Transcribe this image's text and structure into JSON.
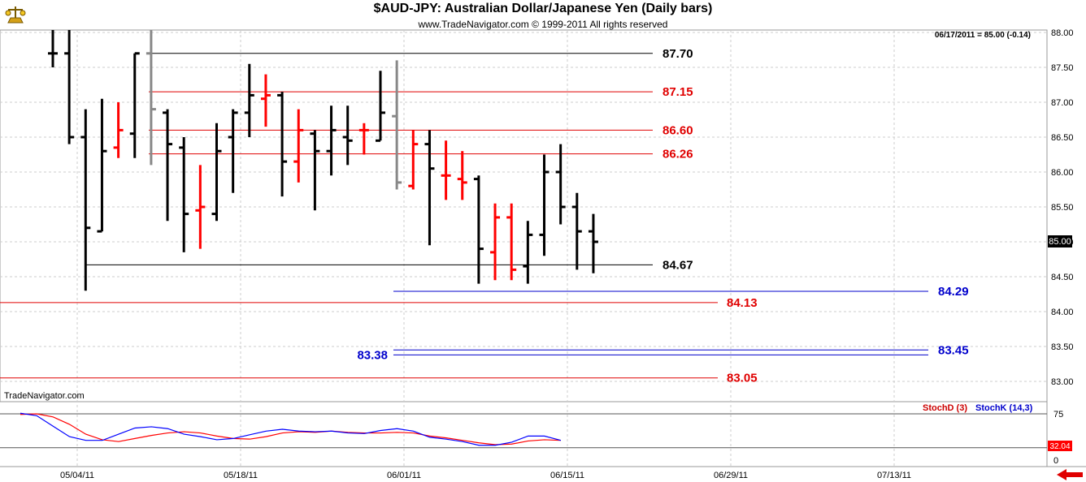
{
  "header": {
    "title": "$AUD-JPY:  Australian Dollar/Japanese Yen  (Daily bars)",
    "copyright": "www.TradeNavigator.com © 1999-2011 All rights reserved"
  },
  "status_readout": "06/17/2011 = 85.00 (-0.14)",
  "watermark": "TradeNavigator.com",
  "current_price_label": "85.00",
  "colors": {
    "up_bar": "#000000",
    "down_bar": "#ff0000",
    "first_day_bar": "#888888",
    "black_level": "#000000",
    "red_level": "#e00000",
    "blue_level": "#0000cc",
    "stoch_d": "#ff0000",
    "stoch_k": "#0000ff"
  },
  "chart_data": {
    "type": "bar",
    "subtype": "ohlc",
    "title": "$AUD-JPY:  Australian Dollar/Japanese Yen  (Daily bars)",
    "ylim": [
      82.7,
      88.1
    ],
    "y_ticks": [
      "88.00",
      "87.50",
      "87.00",
      "86.50",
      "86.00",
      "85.50",
      "85.00",
      "84.50",
      "84.00",
      "83.50",
      "83.00"
    ],
    "x_ticks": [
      "05/04/11",
      "05/18/11",
      "06/01/11",
      "06/15/11",
      "06/29/11",
      "07/13/11"
    ],
    "grid": true,
    "bars": [
      {
        "o": 87.7,
        "h": 88.2,
        "l": 87.5,
        "c": 87.7,
        "color": "black"
      },
      {
        "o": 87.7,
        "h": 88.15,
        "l": 86.4,
        "c": 86.5,
        "color": "black"
      },
      {
        "o": 86.5,
        "h": 86.9,
        "l": 84.3,
        "c": 85.2,
        "color": "black"
      },
      {
        "o": 85.15,
        "h": 87.05,
        "l": 85.15,
        "c": 86.3,
        "color": "black"
      },
      {
        "o": 86.35,
        "h": 87.0,
        "l": 86.2,
        "c": 86.6,
        "color": "red"
      },
      {
        "o": 86.55,
        "h": 87.7,
        "l": 86.2,
        "c": 87.7,
        "color": "black"
      },
      {
        "o": 87.7,
        "h": 88.2,
        "l": 86.1,
        "c": 86.9,
        "color": "gray"
      },
      {
        "o": 86.85,
        "h": 86.9,
        "l": 85.3,
        "c": 86.4,
        "color": "black"
      },
      {
        "o": 86.35,
        "h": 86.5,
        "l": 84.85,
        "c": 85.4,
        "color": "black"
      },
      {
        "o": 85.45,
        "h": 86.1,
        "l": 84.9,
        "c": 85.5,
        "color": "red"
      },
      {
        "o": 85.4,
        "h": 86.7,
        "l": 85.3,
        "c": 86.3,
        "color": "black"
      },
      {
        "o": 86.5,
        "h": 86.9,
        "l": 85.7,
        "c": 86.85,
        "color": "black"
      },
      {
        "o": 86.85,
        "h": 87.55,
        "l": 86.5,
        "c": 87.1,
        "color": "black"
      },
      {
        "o": 87.05,
        "h": 87.4,
        "l": 86.65,
        "c": 87.1,
        "color": "red"
      },
      {
        "o": 87.1,
        "h": 87.15,
        "l": 85.65,
        "c": 86.15,
        "color": "black"
      },
      {
        "o": 86.15,
        "h": 86.9,
        "l": 85.85,
        "c": 86.6,
        "color": "red"
      },
      {
        "o": 86.55,
        "h": 86.6,
        "l": 85.45,
        "c": 86.3,
        "color": "black"
      },
      {
        "o": 86.3,
        "h": 86.95,
        "l": 85.95,
        "c": 86.6,
        "color": "black"
      },
      {
        "o": 86.5,
        "h": 86.95,
        "l": 86.1,
        "c": 86.45,
        "color": "black"
      },
      {
        "o": 86.6,
        "h": 86.7,
        "l": 86.25,
        "c": 86.6,
        "color": "red"
      },
      {
        "o": 86.45,
        "h": 87.45,
        "l": 86.45,
        "c": 86.85,
        "color": "black"
      },
      {
        "o": 86.8,
        "h": 87.6,
        "l": 85.75,
        "c": 85.85,
        "color": "gray"
      },
      {
        "o": 85.8,
        "h": 86.6,
        "l": 85.75,
        "c": 86.4,
        "color": "red"
      },
      {
        "o": 86.4,
        "h": 86.6,
        "l": 84.95,
        "c": 86.05,
        "color": "black"
      },
      {
        "o": 85.95,
        "h": 86.45,
        "l": 85.6,
        "c": 85.95,
        "color": "red"
      },
      {
        "o": 85.9,
        "h": 86.3,
        "l": 85.6,
        "c": 85.85,
        "color": "red"
      },
      {
        "o": 85.9,
        "h": 85.95,
        "l": 84.4,
        "c": 84.9,
        "color": "black"
      },
      {
        "o": 84.85,
        "h": 85.55,
        "l": 84.45,
        "c": 85.35,
        "color": "red"
      },
      {
        "o": 85.35,
        "h": 85.55,
        "l": 84.45,
        "c": 84.6,
        "color": "red"
      },
      {
        "o": 84.65,
        "h": 85.3,
        "l": 84.4,
        "c": 85.1,
        "color": "black"
      },
      {
        "o": 85.1,
        "h": 86.25,
        "l": 84.8,
        "c": 86.0,
        "color": "black"
      },
      {
        "o": 86.0,
        "h": 86.4,
        "l": 85.25,
        "c": 85.5,
        "color": "black"
      },
      {
        "o": 85.5,
        "h": 85.7,
        "l": 84.6,
        "c": 85.15,
        "color": "black"
      },
      {
        "o": 85.15,
        "h": 85.4,
        "l": 84.55,
        "c": 85.0,
        "color": "black"
      }
    ],
    "levels": [
      {
        "value": 87.7,
        "label": "87.70",
        "color": "black"
      },
      {
        "value": 87.15,
        "label": "87.15",
        "color": "red"
      },
      {
        "value": 86.6,
        "label": "86.60",
        "color": "red"
      },
      {
        "value": 86.26,
        "label": "86.26",
        "color": "red"
      },
      {
        "value": 84.67,
        "label": "84.67",
        "color": "black"
      },
      {
        "value": 84.29,
        "label": "84.29",
        "color": "blue"
      },
      {
        "value": 84.13,
        "label": "84.13",
        "color": "red"
      },
      {
        "value": 83.45,
        "label": "83.45",
        "color": "blue"
      },
      {
        "value": 83.38,
        "label": "83.38",
        "color": "blue"
      },
      {
        "value": 83.05,
        "label": "83.05",
        "color": "red"
      }
    ],
    "stochastic": {
      "ylim": [
        0,
        100
      ],
      "y_ticks": [
        "75",
        "0"
      ],
      "reference_lines": [
        75,
        20
      ],
      "legend": [
        "StochD (3)",
        "StochK (14,3)"
      ],
      "last_value_label": "32.04",
      "series": [
        {
          "name": "StochD (3)",
          "color": "red",
          "values": [
            74,
            75,
            70,
            58,
            42,
            33,
            30,
            35,
            40,
            44,
            46,
            44,
            39,
            35,
            34,
            38,
            44,
            46,
            45,
            47,
            45,
            44,
            44,
            45,
            44,
            39,
            36,
            32,
            28,
            25,
            26,
            31,
            33,
            32
          ]
        },
        {
          "name": "StochK (14,3)",
          "color": "blue",
          "values": [
            76,
            72,
            55,
            38,
            32,
            32,
            42,
            52,
            54,
            51,
            42,
            38,
            33,
            35,
            41,
            47,
            50,
            47,
            46,
            47,
            44,
            43,
            48,
            51,
            47,
            37,
            34,
            30,
            24,
            24,
            29,
            39,
            39,
            32
          ]
        }
      ]
    }
  }
}
